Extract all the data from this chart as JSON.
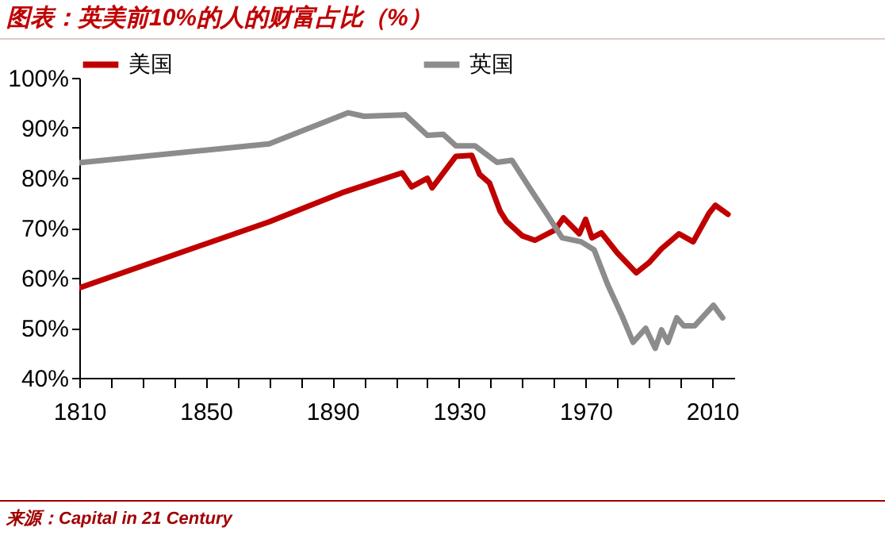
{
  "chart_data": {
    "type": "line",
    "title": "图表：英美前10%的人的财富占比（%）",
    "annotations": [
      "来源：Capital in 21 Century"
    ],
    "series": [
      {
        "name": "美国",
        "color": "#c00000",
        "x": [
          1810,
          1870,
          1893,
          1912,
          1915,
          1920,
          1921.5,
          1929,
          1934,
          1936.5,
          1939.6,
          1943,
          1945,
          1950,
          1954,
          1960.4,
          1963,
          1968,
          1970,
          1972,
          1975,
          1980,
          1986,
          1990,
          1994,
          1999.5,
          2004,
          2009,
          2011,
          2015
        ],
        "values": [
          58,
          71.2,
          77,
          81,
          78.2,
          79.9,
          78,
          84.3,
          84.5,
          80.7,
          79,
          73.3,
          71.3,
          68.4,
          67.5,
          69.6,
          72,
          68.8,
          71.7,
          68,
          69,
          65,
          61,
          63,
          65.8,
          68.8,
          67.2,
          72.9,
          74.5,
          72.7
        ]
      },
      {
        "name": "英国",
        "color": "#8c8c8c",
        "x": [
          1810,
          1870,
          1895,
          1900,
          1913,
          1920,
          1925,
          1929,
          1935,
          1942,
          1946.7,
          1952.5,
          1957.5,
          1962.6,
          1968.6,
          1972.7,
          1977,
          1981.5,
          1985,
          1989,
          1992,
          1994,
          1996,
          1998.8,
          2001,
          2004.5,
          2010.4,
          2013.3
        ],
        "values": [
          83,
          86.8,
          93,
          92.3,
          92.6,
          88.5,
          88.7,
          86.4,
          86.4,
          83.1,
          83.5,
          77.8,
          73,
          68,
          67.2,
          65.6,
          58.6,
          52.4,
          47.1,
          49.9,
          45.9,
          49.6,
          47.1,
          52,
          50.4,
          50.4,
          54.5,
          52
        ]
      }
    ],
    "xlim": [
      1810,
      2017
    ],
    "xticks": [
      1810,
      {
        "value": 1820,
        "label": null
      },
      {
        "value": 1830,
        "label": null
      },
      {
        "value": 1840,
        "label": null
      },
      1850,
      {
        "value": 1860,
        "label": null
      },
      {
        "value": 1870,
        "label": null
      },
      {
        "value": 1880,
        "label": null
      },
      1890,
      {
        "value": 1900,
        "label": null
      },
      {
        "value": 1910,
        "label": null
      },
      {
        "value": 1920,
        "label": null
      },
      1930,
      {
        "value": 1940,
        "label": null
      },
      {
        "value": 1950,
        "label": null
      },
      {
        "value": 1960,
        "label": null
      },
      1970,
      {
        "value": 1980,
        "label": null
      },
      {
        "value": 1990,
        "label": null
      },
      {
        "value": 2000,
        "label": null
      },
      2010
    ],
    "ylim": [
      40,
      100
    ],
    "yticks": [
      {
        "value": 40,
        "label": "40%"
      },
      {
        "value": 50,
        "label": "50%"
      },
      {
        "value": 60,
        "label": "60%"
      },
      {
        "value": 70,
        "label": "70%"
      },
      {
        "value": 80,
        "label": "80%"
      },
      {
        "value": 90,
        "label": "90%"
      },
      {
        "value": 100,
        "label": "100%"
      }
    ],
    "grid": false,
    "legend": "top",
    "marker": "none",
    "line_style": "solid"
  }
}
